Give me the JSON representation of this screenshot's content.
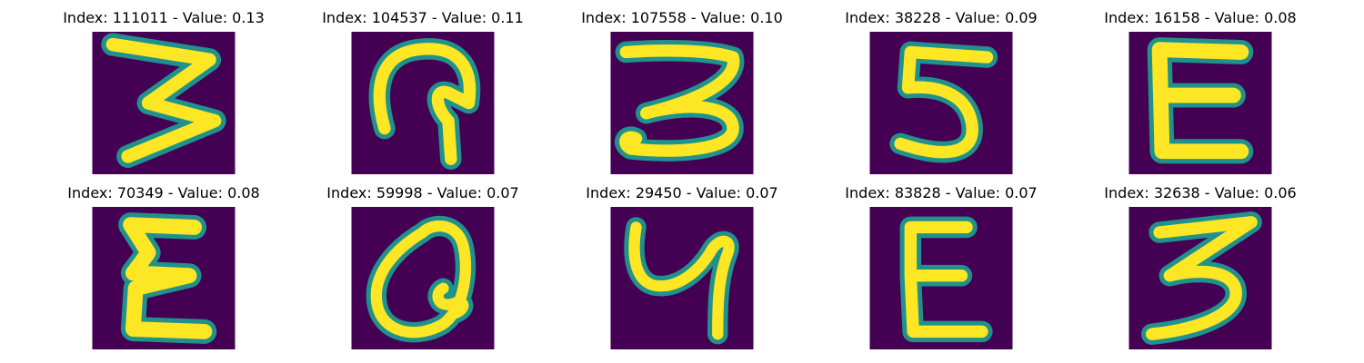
{
  "colors": {
    "background": "#440154",
    "stroke_edge": "#21918c",
    "stroke_mid": "#5ec962",
    "stroke_core": "#fde725"
  },
  "panels": [
    {
      "title": "Index: 111011 - Value: 0.13",
      "glyph": "3"
    },
    {
      "title": "Index: 104537 - Value: 0.11",
      "glyph": "9"
    },
    {
      "title": "Index: 107558 - Value: 0.10",
      "glyph": "3"
    },
    {
      "title": "Index: 38228 - Value: 0.09",
      "glyph": "5"
    },
    {
      "title": "Index: 16158 - Value: 0.08",
      "glyph": "E"
    },
    {
      "title": "Index: 70349 - Value: 0.08",
      "glyph": "E"
    },
    {
      "title": "Index: 59998 - Value: 0.07",
      "glyph": "Q"
    },
    {
      "title": "Index: 29450 - Value: 0.07",
      "glyph": "4"
    },
    {
      "title": "Index: 83828 - Value: 0.07",
      "glyph": "E"
    },
    {
      "title": "Index: 32638 - Value: 0.06",
      "glyph": "3"
    }
  ]
}
